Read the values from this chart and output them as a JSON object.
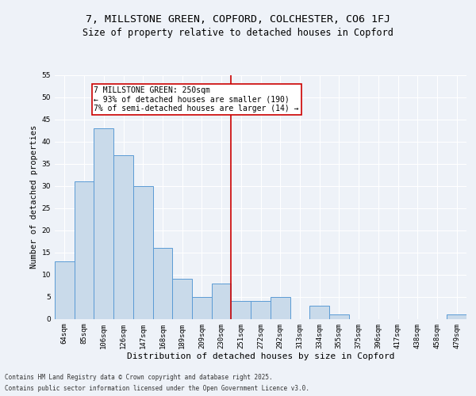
{
  "title": "7, MILLSTONE GREEN, COPFORD, COLCHESTER, CO6 1FJ",
  "subtitle": "Size of property relative to detached houses in Copford",
  "xlabel": "Distribution of detached houses by size in Copford",
  "ylabel": "Number of detached properties",
  "categories": [
    "64sqm",
    "85sqm",
    "106sqm",
    "126sqm",
    "147sqm",
    "168sqm",
    "189sqm",
    "209sqm",
    "230sqm",
    "251sqm",
    "272sqm",
    "292sqm",
    "313sqm",
    "334sqm",
    "355sqm",
    "375sqm",
    "396sqm",
    "417sqm",
    "438sqm",
    "458sqm",
    "479sqm"
  ],
  "values": [
    13,
    31,
    43,
    37,
    30,
    16,
    9,
    5,
    8,
    4,
    4,
    5,
    0,
    3,
    1,
    0,
    0,
    0,
    0,
    0,
    1
  ],
  "bar_color": "#c9daea",
  "bar_edge_color": "#5b9bd5",
  "subject_line_index": 9,
  "subject_line_color": "#cc0000",
  "annotation_text": "7 MILLSTONE GREEN: 250sqm\n← 93% of detached houses are smaller (190)\n7% of semi-detached houses are larger (14) →",
  "annotation_box_color": "#cc0000",
  "ylim": [
    0,
    55
  ],
  "yticks": [
    0,
    5,
    10,
    15,
    20,
    25,
    30,
    35,
    40,
    45,
    50,
    55
  ],
  "background_color": "#eef2f8",
  "footer_line1": "Contains HM Land Registry data © Crown copyright and database right 2025.",
  "footer_line2": "Contains public sector information licensed under the Open Government Licence v3.0.",
  "title_fontsize": 9.5,
  "subtitle_fontsize": 8.5,
  "xlabel_fontsize": 8,
  "ylabel_fontsize": 7.5,
  "tick_fontsize": 6.5,
  "annotation_fontsize": 7,
  "footer_fontsize": 5.5
}
